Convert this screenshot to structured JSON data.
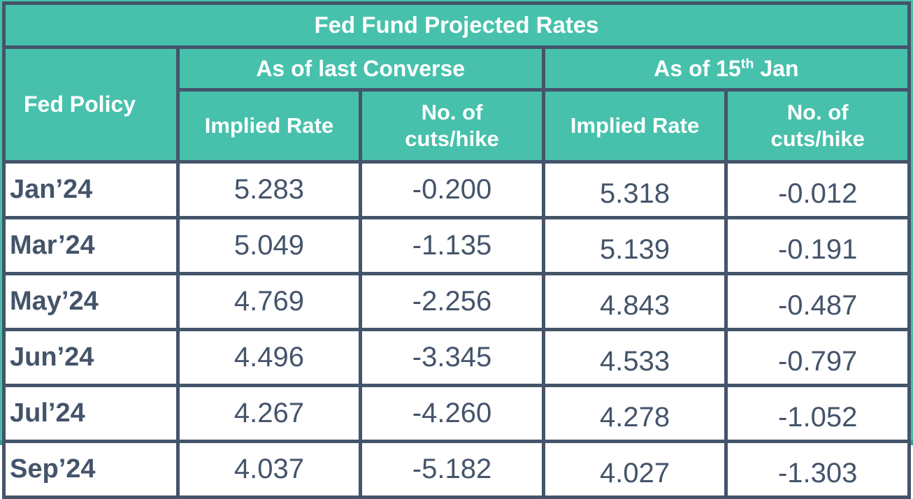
{
  "title": "Fed Fund Projected Rates",
  "header": {
    "policy": "Fed Policy",
    "group_converse": "As of last Converse",
    "group_jan": {
      "prefix": "As of 15",
      "sup": "th",
      "suffix": " Jan"
    },
    "implied_rate": "Implied Rate",
    "cuts_hike": "No. of\ncuts/hike"
  },
  "colors": {
    "teal": "#47C1AC",
    "dark_slate": "#44546A",
    "cell_background": "#FFFFFF",
    "header_text": "#FFFFFF",
    "bottom_rim": "#3A9E8D"
  },
  "chart_data": {
    "type": "table",
    "title": "Fed Fund Projected Rates",
    "column_groups": [
      "As of last Converse",
      "As of 15th Jan"
    ],
    "columns": [
      "Fed Policy",
      "Implied Rate",
      "No. of cuts/hike",
      "Implied Rate",
      "No. of cuts/hike"
    ],
    "rows": [
      {
        "policy": "Jan’24",
        "converse_implied": "5.283",
        "converse_cuts": "-0.200",
        "jan15_implied": "5.318",
        "jan15_cuts": "-0.012"
      },
      {
        "policy": "Mar’24",
        "converse_implied": "5.049",
        "converse_cuts": "-1.135",
        "jan15_implied": "5.139",
        "jan15_cuts": "-0.191"
      },
      {
        "policy": "May’24",
        "converse_implied": "4.769",
        "converse_cuts": "-2.256",
        "jan15_implied": "4.843",
        "jan15_cuts": "-0.487"
      },
      {
        "policy": "Jun’24",
        "converse_implied": "4.496",
        "converse_cuts": "-3.345",
        "jan15_implied": "4.533",
        "jan15_cuts": "-0.797"
      },
      {
        "policy": "Jul’24",
        "converse_implied": "4.267",
        "converse_cuts": "-4.260",
        "jan15_implied": "4.278",
        "jan15_cuts": "-1.052"
      },
      {
        "policy": "Sep’24",
        "converse_implied": "4.037",
        "converse_cuts": "-5.182",
        "jan15_implied": "4.027",
        "jan15_cuts": "-1.303"
      }
    ]
  }
}
